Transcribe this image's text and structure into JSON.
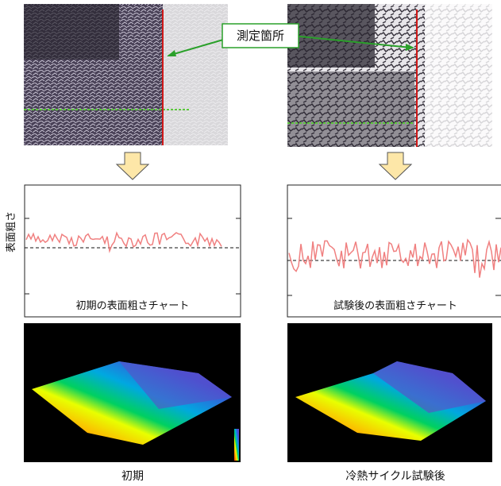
{
  "callout": {
    "label": "測定箇所"
  },
  "y_axis_label": "表面粗さ",
  "charts": [
    {
      "caption": "初期の表面粗さチャート"
    },
    {
      "caption": "試験後の表面粗さチャート"
    }
  ],
  "panels": [
    {
      "label": "初期"
    },
    {
      "label": "冷熱サイクル試験後"
    }
  ]
}
